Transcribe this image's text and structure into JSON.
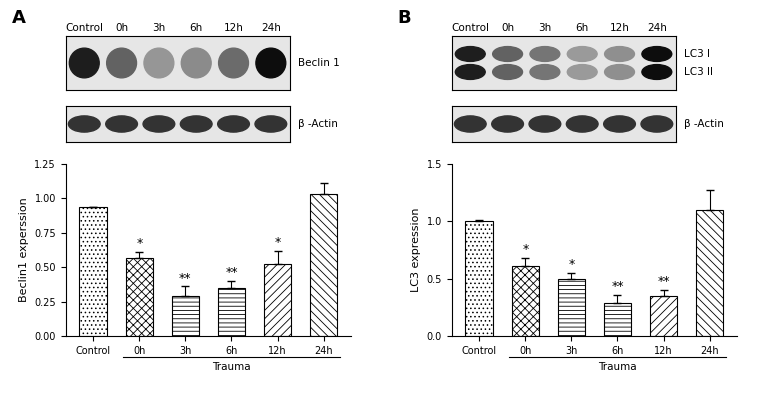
{
  "chart_data": [
    {
      "panel_label": "A",
      "type": "bar",
      "categories": [
        "Control",
        "0h",
        "3h",
        "6h",
        "12h",
        "24h"
      ],
      "values": [
        0.94,
        0.57,
        0.29,
        0.35,
        0.52,
        1.03
      ],
      "errors": [
        0.0,
        0.04,
        0.07,
        0.05,
        0.1,
        0.08
      ],
      "significance": [
        null,
        "*",
        "**",
        "**",
        "*",
        null
      ],
      "ylabel": "Beclin1 experssion",
      "group_label": "Trauma",
      "group_categories": [
        "0h",
        "3h",
        "6h",
        "12h",
        "24h"
      ],
      "ylim": [
        0,
        1.25
      ],
      "yticks": [
        {
          "value": 0,
          "label": "0.00"
        },
        {
          "value": 0.25,
          "label": "0.25"
        },
        {
          "value": 0.5,
          "label": "0.50"
        },
        {
          "value": 0.75,
          "label": "0.75"
        },
        {
          "value": 1.0,
          "label": "1.00"
        },
        {
          "value": 1.25,
          "label": "1.25"
        }
      ],
      "color": "#ffffff",
      "blot": {
        "lanes": [
          "Control",
          "0h",
          "3h",
          "6h",
          "12h",
          "24h"
        ],
        "bands": [
          "Beclin 1"
        ],
        "loading_control": "β -Actin"
      }
    },
    {
      "panel_label": "B",
      "type": "bar",
      "categories": [
        "Control",
        "0h",
        "3h",
        "6h",
        "12h",
        "24h"
      ],
      "values": [
        1.0,
        0.61,
        0.5,
        0.29,
        0.35,
        1.1
      ],
      "errors": [
        0.01,
        0.07,
        0.05,
        0.07,
        0.05,
        0.17
      ],
      "significance": [
        null,
        "*",
        "*",
        "**",
        "**",
        null
      ],
      "ylabel": "LC3 expression",
      "group_label": "Trauma",
      "group_categories": [
        "0h",
        "3h",
        "6h",
        "12h",
        "24h"
      ],
      "ylim": [
        0,
        1.5
      ],
      "yticks": [
        {
          "value": 0,
          "label": "0.0"
        },
        {
          "value": 0.5,
          "label": "0.5"
        },
        {
          "value": 1.0,
          "label": "1.0"
        },
        {
          "value": 1.5,
          "label": "1.5"
        }
      ],
      "color": "#ffffff",
      "blot": {
        "lanes": [
          "Control",
          "0h",
          "3h",
          "6h",
          "12h",
          "24h"
        ],
        "bands": [
          "LC3 I",
          "LC3 II"
        ],
        "loading_control": "β -Actin"
      }
    }
  ]
}
